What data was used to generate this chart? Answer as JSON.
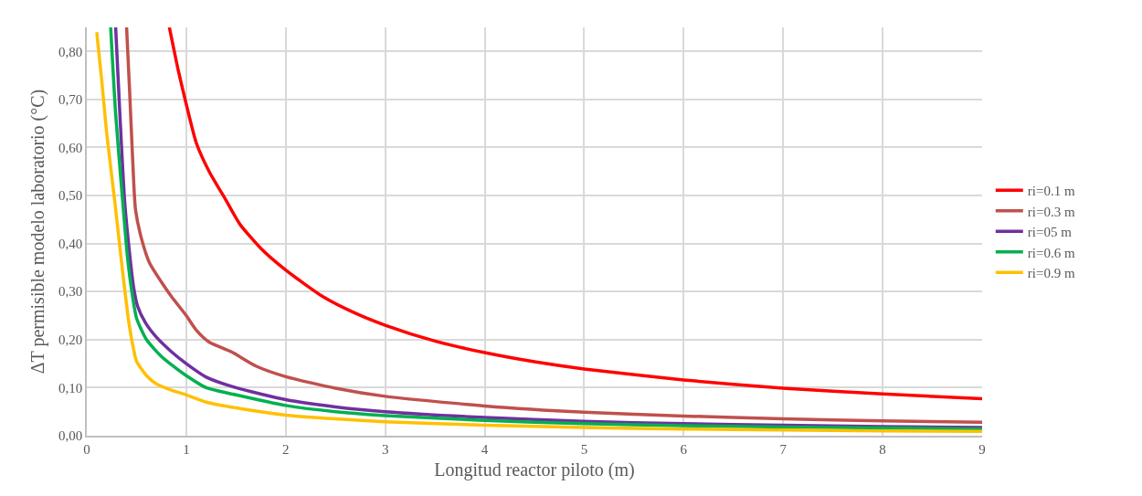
{
  "chart_data": {
    "type": "line",
    "xlabel": "Longitud reactor piloto (m)",
    "ylabel": "ΔT permisible modelo laboratorio (°C)",
    "xlim": [
      0,
      9
    ],
    "xticks": [
      0,
      1,
      2,
      3,
      4,
      5,
      6,
      7,
      8,
      9
    ],
    "ylim": [
      0,
      0.85
    ],
    "yticks": [
      {
        "value": 0,
        "label": "0,00"
      },
      {
        "value": 0.1,
        "label": "0,10"
      },
      {
        "value": 0.2,
        "label": "0,20"
      },
      {
        "value": 0.3,
        "label": "0,30"
      },
      {
        "value": 0.4,
        "label": "0,40"
      },
      {
        "value": 0.5,
        "label": "0,50"
      },
      {
        "value": 0.6,
        "label": "0,60"
      },
      {
        "value": 0.7,
        "label": "0,70"
      },
      {
        "value": 0.8,
        "label": "0,80"
      }
    ],
    "grid": true,
    "legend": "right",
    "marker": "none",
    "line_style": "solid",
    "series": [
      {
        "name": "ri=0.1 m",
        "color": "#ff0000",
        "x": [
          0.83,
          0.92,
          1.0,
          1.1,
          1.23,
          1.4,
          1.54,
          1.75,
          2.0,
          2.37,
          2.7,
          3.0,
          3.5,
          4.0,
          4.5,
          5.0,
          6.0,
          7.0,
          8.0,
          9.0
        ],
        "values": [
          0.85,
          0.76,
          0.69,
          0.61,
          0.55,
          0.49,
          0.44,
          0.39,
          0.345,
          0.29,
          0.255,
          0.23,
          0.197,
          0.173,
          0.154,
          0.139,
          0.116,
          0.099,
          0.087,
          0.077
        ]
      },
      {
        "name": "ri=0.3 m",
        "color": "#c0504d",
        "x": [
          0.4,
          0.43,
          0.46,
          0.49,
          0.55,
          0.63,
          0.75,
          0.85,
          1.0,
          1.1,
          1.23,
          1.45,
          1.7,
          2.0,
          2.5,
          3.0,
          4.0,
          5.0,
          6.0,
          7.0,
          8.0,
          9.0
        ],
        "values": [
          0.85,
          0.72,
          0.58,
          0.47,
          0.41,
          0.36,
          0.32,
          0.29,
          0.25,
          0.22,
          0.195,
          0.175,
          0.145,
          0.123,
          0.099,
          0.082,
          0.062,
          0.049,
          0.041,
          0.035,
          0.031,
          0.028
        ]
      },
      {
        "name": "ri=05 m",
        "color": "#7030a0",
        "x": [
          0.29,
          0.33,
          0.38,
          0.43,
          0.47,
          0.51,
          0.59,
          0.7,
          0.85,
          1.0,
          1.2,
          1.5,
          2.0,
          2.5,
          3.0,
          4.0,
          5.0,
          6.0,
          7.0,
          8.0,
          9.0
        ],
        "values": [
          0.85,
          0.68,
          0.49,
          0.38,
          0.31,
          0.27,
          0.235,
          0.205,
          0.175,
          0.15,
          0.122,
          0.1,
          0.075,
          0.06,
          0.05,
          0.038,
          0.03,
          0.025,
          0.022,
          0.019,
          0.017
        ]
      },
      {
        "name": "ri=0.6 m",
        "color": "#00b050",
        "x": [
          0.24,
          0.29,
          0.36,
          0.41,
          0.46,
          0.5,
          0.6,
          0.75,
          0.9,
          1.0,
          1.2,
          1.5,
          2.0,
          2.5,
          3.0,
          4.0,
          5.0,
          6.0,
          7.0,
          8.0,
          9.0
        ],
        "values": [
          0.85,
          0.67,
          0.49,
          0.37,
          0.29,
          0.245,
          0.2,
          0.165,
          0.14,
          0.125,
          0.1,
          0.085,
          0.063,
          0.05,
          0.042,
          0.032,
          0.025,
          0.021,
          0.018,
          0.016,
          0.014
        ]
      },
      {
        "name": "ri=0.9 m",
        "color": "#ffc000",
        "x": [
          0.1,
          0.15,
          0.2,
          0.28,
          0.35,
          0.42,
          0.47,
          0.5,
          0.6,
          0.7,
          0.85,
          1.0,
          1.2,
          1.5,
          2.0,
          2.5,
          3.0,
          4.0,
          5.0,
          6.0,
          7.0,
          8.0,
          9.0
        ],
        "values": [
          0.84,
          0.74,
          0.63,
          0.49,
          0.36,
          0.24,
          0.18,
          0.155,
          0.125,
          0.108,
          0.095,
          0.085,
          0.07,
          0.058,
          0.043,
          0.035,
          0.029,
          0.022,
          0.017,
          0.014,
          0.012,
          0.01,
          0.009
        ]
      }
    ]
  }
}
